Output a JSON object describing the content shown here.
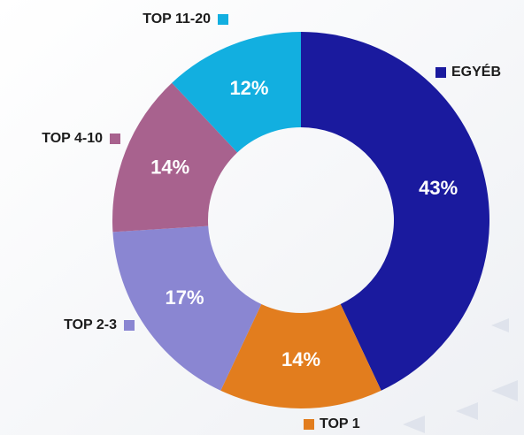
{
  "chart_data": {
    "type": "donut",
    "categories": [
      "EGYÉB",
      "TOP 1",
      "TOP 2-3",
      "TOP 4-10",
      "TOP 11-20"
    ],
    "values": [
      43,
      14,
      17,
      14,
      12
    ],
    "value_labels": [
      "43%",
      "14%",
      "17%",
      "14%",
      "12%"
    ],
    "colors": [
      "#1a1a9e",
      "#e27d1e",
      "#8a86d2",
      "#a8628e",
      "#12afe0"
    ]
  }
}
